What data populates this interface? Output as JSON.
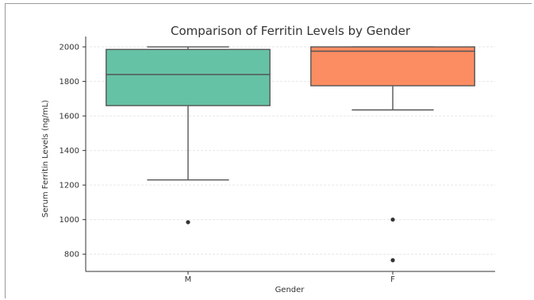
{
  "chart_data": {
    "type": "box",
    "title": "Comparison of Ferritin Levels by Gender",
    "xlabel": "Gender",
    "ylabel": "Serum Ferritin Levels (ng/mL)",
    "categories": [
      "M",
      "F"
    ],
    "ylim": [
      700,
      2060
    ],
    "yticks": [
      800,
      1000,
      1200,
      1400,
      1600,
      1800,
      2000
    ],
    "grid": true,
    "boxes": [
      {
        "name": "M",
        "color": "#66c2a5",
        "whisker_low": 1230,
        "q1": 1660,
        "median": 1840,
        "q3": 1985,
        "whisker_high": 2000,
        "outliers": [
          985
        ]
      },
      {
        "name": "F",
        "color": "#fc8d62",
        "whisker_low": 1635,
        "q1": 1775,
        "median": 1975,
        "q3": 2000,
        "whisker_high": 2000,
        "outliers": [
          1000,
          765
        ]
      }
    ]
  }
}
